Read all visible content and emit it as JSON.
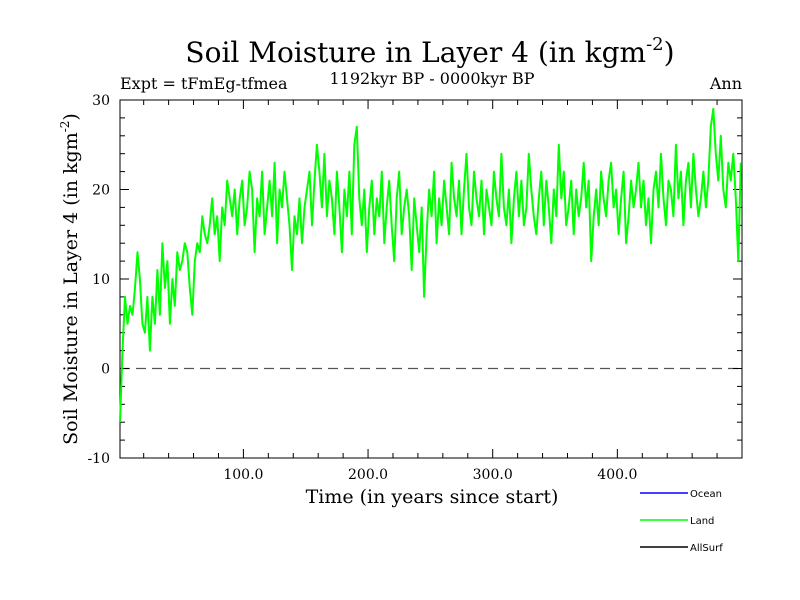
{
  "chart_data": {
    "type": "line",
    "title": "Soil Moisture in Layer 4 (in kgm",
    "title_sup": "-2",
    "title_close": ")",
    "subtitle": "1192kyr BP - 0000kyr BP",
    "expt_label": "Expt = tFmEg-tfmea",
    "period_label": "Ann",
    "xlabel": "Time (in years since start)",
    "ylabel": "Soil Moisture in Layer 4 (in kgm",
    "ylabel_sup": "-2",
    "ylabel_close": ")",
    "xlim": [
      1,
      500
    ],
    "ylim": [
      -10,
      30
    ],
    "xticks": [
      100,
      200,
      300,
      400
    ],
    "xtick_labels": [
      "100.0",
      "200.0",
      "300.0",
      "400.0"
    ],
    "yticks": [
      -10,
      0,
      10,
      20,
      30
    ],
    "ytick_labels": [
      "-10",
      "0",
      "10",
      "20",
      "30"
    ],
    "reference_line": 0,
    "legend": [
      {
        "name": "Ocean",
        "color": "#0000ff"
      },
      {
        "name": "Land",
        "color": "#00ff00"
      },
      {
        "name": "AllSurf",
        "color": "#000000"
      }
    ],
    "series": [
      {
        "name": "Land",
        "color": "#00ff00",
        "x": [
          1,
          3,
          5,
          7,
          9,
          11,
          13,
          15,
          17,
          19,
          21,
          23,
          25,
          27,
          29,
          31,
          33,
          35,
          37,
          39,
          41,
          43,
          45,
          47,
          49,
          51,
          53,
          55,
          57,
          59,
          61,
          63,
          65,
          67,
          69,
          71,
          73,
          75,
          77,
          79,
          81,
          83,
          85,
          87,
          89,
          91,
          93,
          95,
          97,
          99,
          101,
          103,
          105,
          107,
          109,
          111,
          113,
          115,
          117,
          119,
          121,
          123,
          125,
          127,
          129,
          131,
          133,
          135,
          137,
          139,
          141,
          143,
          145,
          147,
          149,
          151,
          153,
          155,
          157,
          159,
          161,
          163,
          165,
          167,
          169,
          171,
          173,
          175,
          177,
          179,
          181,
          183,
          185,
          187,
          189,
          191,
          193,
          195,
          197,
          199,
          201,
          203,
          205,
          207,
          209,
          211,
          213,
          215,
          217,
          219,
          221,
          223,
          225,
          227,
          229,
          231,
          233,
          235,
          237,
          239,
          241,
          243,
          245,
          247,
          249,
          251,
          253,
          255,
          257,
          259,
          261,
          263,
          265,
          267,
          269,
          271,
          273,
          275,
          277,
          279,
          281,
          283,
          285,
          287,
          289,
          291,
          293,
          295,
          297,
          299,
          301,
          303,
          305,
          307,
          309,
          311,
          313,
          315,
          317,
          319,
          321,
          323,
          325,
          327,
          329,
          331,
          333,
          335,
          337,
          339,
          341,
          343,
          345,
          347,
          349,
          351,
          353,
          355,
          357,
          359,
          361,
          363,
          365,
          367,
          369,
          371,
          373,
          375,
          377,
          379,
          381,
          383,
          385,
          387,
          389,
          391,
          393,
          395,
          397,
          399,
          401,
          403,
          405,
          407,
          409,
          411,
          413,
          415,
          417,
          419,
          421,
          423,
          425,
          427,
          429,
          431,
          433,
          435,
          437,
          439,
          441,
          443,
          445,
          447,
          449,
          451,
          453,
          455,
          457,
          459,
          461,
          463,
          465,
          467,
          469,
          471,
          473,
          475,
          477,
          479,
          481,
          483,
          485,
          487,
          489,
          491,
          493,
          495,
          497,
          499
        ],
        "values": [
          -6,
          2,
          8,
          5,
          7,
          6,
          9,
          13,
          10,
          5,
          4,
          8,
          2,
          8,
          5,
          11,
          6,
          14,
          9,
          12,
          5,
          10,
          7,
          13,
          11,
          12,
          14,
          13,
          9,
          6,
          12,
          14,
          13,
          17,
          15,
          14,
          16,
          19,
          15,
          17,
          12,
          18,
          16,
          21,
          19,
          17,
          20,
          15,
          19,
          21,
          16,
          18,
          22,
          20,
          13,
          19,
          17,
          22,
          15,
          18,
          21,
          17,
          23,
          14,
          20,
          18,
          22,
          19,
          16,
          11,
          17,
          15,
          19,
          14,
          18,
          20,
          22,
          16,
          21,
          25,
          22,
          18,
          24,
          17,
          21,
          19,
          15,
          22,
          18,
          13,
          20,
          17,
          22,
          15,
          25,
          27,
          19,
          16,
          20,
          13,
          18,
          21,
          15,
          19,
          17,
          22,
          14,
          18,
          21,
          16,
          12,
          19,
          22,
          15,
          18,
          20,
          17,
          11,
          19,
          16,
          13,
          18,
          8,
          15,
          20,
          17,
          22,
          14,
          19,
          16,
          21,
          18,
          15,
          23,
          19,
          17,
          21,
          15,
          20,
          24,
          18,
          16,
          22,
          19,
          17,
          21,
          15,
          20,
          18,
          16,
          22,
          19,
          17,
          24,
          18,
          16,
          20,
          14,
          19,
          22,
          17,
          21,
          16,
          18,
          24,
          20,
          17,
          15,
          19,
          22,
          16,
          21,
          18,
          14,
          20,
          17,
          25,
          19,
          22,
          16,
          18,
          21,
          15,
          20,
          17,
          19,
          23,
          18,
          21,
          12,
          17,
          20,
          16,
          22,
          19,
          17,
          21,
          23,
          18,
          20,
          15,
          19,
          22,
          14,
          17,
          21,
          18,
          20,
          23,
          18,
          21,
          16,
          19,
          14,
          20,
          22,
          18,
          24,
          19,
          16,
          21,
          20,
          17,
          25,
          19,
          22,
          16,
          21,
          23,
          18,
          24,
          20,
          17,
          19,
          22,
          18,
          21,
          27,
          29,
          24,
          21,
          26,
          20,
          18,
          23,
          21,
          24,
          19,
          12,
          23
        ]
      }
    ]
  }
}
